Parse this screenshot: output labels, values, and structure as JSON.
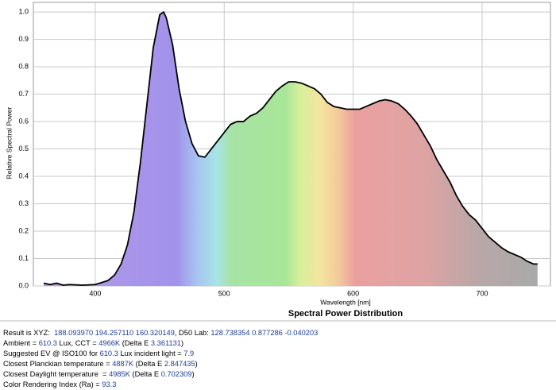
{
  "chart_data": {
    "type": "area-line",
    "title": "Spectral Power Distribution",
    "x_label": "Wavelength [nm]",
    "y_label": "Relative Spectral Power",
    "x": [
      360,
      365,
      370,
      375,
      380,
      390,
      400,
      410,
      415,
      420,
      425,
      430,
      435,
      440,
      445,
      450,
      453,
      455,
      460,
      465,
      470,
      475,
      480,
      485,
      490,
      495,
      500,
      505,
      510,
      515,
      520,
      525,
      530,
      535,
      540,
      545,
      550,
      555,
      560,
      565,
      570,
      575,
      580,
      585,
      590,
      595,
      600,
      605,
      610,
      615,
      620,
      625,
      630,
      635,
      640,
      645,
      650,
      655,
      660,
      665,
      670,
      675,
      680,
      685,
      690,
      695,
      700,
      705,
      710,
      715,
      720,
      725,
      730,
      735,
      740,
      743
    ],
    "values": [
      0.01,
      0.005,
      0.01,
      0.003,
      0.005,
      0.003,
      0.005,
      0.02,
      0.04,
      0.08,
      0.15,
      0.27,
      0.45,
      0.66,
      0.87,
      0.99,
      1.0,
      0.98,
      0.88,
      0.72,
      0.6,
      0.52,
      0.475,
      0.47,
      0.5,
      0.53,
      0.56,
      0.59,
      0.6,
      0.6,
      0.62,
      0.63,
      0.65,
      0.68,
      0.71,
      0.73,
      0.745,
      0.745,
      0.74,
      0.73,
      0.72,
      0.7,
      0.67,
      0.655,
      0.65,
      0.645,
      0.645,
      0.645,
      0.655,
      0.665,
      0.675,
      0.68,
      0.675,
      0.665,
      0.645,
      0.62,
      0.59,
      0.55,
      0.51,
      0.46,
      0.42,
      0.38,
      0.33,
      0.29,
      0.26,
      0.24,
      0.21,
      0.18,
      0.16,
      0.14,
      0.125,
      0.115,
      0.105,
      0.09,
      0.08,
      0.08
    ],
    "color": "#000000",
    "xlim": [
      352,
      753
    ],
    "xticks": [
      400,
      500,
      600,
      700
    ],
    "ylim": [
      0,
      1.035
    ],
    "yticks": [
      {
        "value": 0,
        "label": "0.0"
      },
      0.1,
      0.2,
      0.3,
      0.4,
      0.5,
      0.6,
      0.7,
      0.8,
      0.9,
      {
        "value": 1,
        "label": "1.0"
      }
    ],
    "grid": true
  },
  "readout": [
    [
      "Result is XYZ:  ",
      "188.093970 194.257110 160.320149",
      ", D50 Lab: ",
      "128.738354 0.877286 -0.040203"
    ],
    [
      "Ambient = ",
      "610.3",
      " Lux, CCT = ",
      "4966K",
      " (Delta E ",
      "3.361131",
      ")"
    ],
    [
      "Suggested EV @ ISO100 for ",
      "610.3",
      " Lux incident light = ",
      "7.9"
    ],
    [
      "Closest Planckian temperature = ",
      "4887K",
      " (Delta E ",
      "2.847435",
      ")"
    ],
    [
      "Closest Daylight temperature  = ",
      "4985K",
      " (Delta E ",
      "0.702309",
      ")"
    ],
    [
      "Color Rendering Index (Ra) = ",
      "93.3"
    ]
  ]
}
